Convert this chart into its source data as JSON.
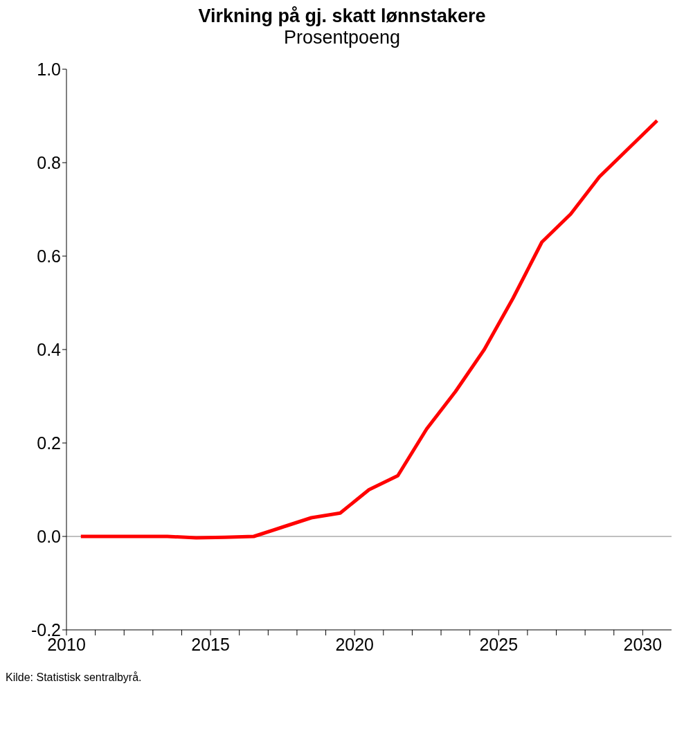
{
  "chart_data": {
    "type": "line",
    "title": "Virkning på gj. skatt lønnstakere",
    "subtitle": "Prosentpoeng",
    "annotations": [
      "Kilde: Statistisk sentralbyrå."
    ],
    "x": [
      2010.5,
      2011.5,
      2012.5,
      2013.5,
      2014.5,
      2015.5,
      2016.5,
      2017.5,
      2018.5,
      2019.5,
      2020.5,
      2021.5,
      2022.5,
      2023.5,
      2024.5,
      2025.5,
      2026.5,
      2027.5,
      2028.5,
      2029.5,
      2030.5
    ],
    "series": [
      {
        "color": "#ff0000",
        "values": [
          0,
          0,
          0,
          0,
          -0.003,
          -0.002,
          0,
          0.02,
          0.04,
          0.05,
          0.1,
          0.13,
          0.23,
          0.31,
          0.4,
          0.51,
          0.63,
          0.69,
          0.77,
          0.83,
          0.89
        ]
      }
    ],
    "xlim": [
      2010,
      2031
    ],
    "xticks": [
      2010,
      {
        "value": 2011,
        "label": null
      },
      {
        "value": 2012,
        "label": null
      },
      {
        "value": 2013,
        "label": null
      },
      {
        "value": 2014,
        "label": null
      },
      2015,
      {
        "value": 2016,
        "label": null
      },
      {
        "value": 2017,
        "label": null
      },
      {
        "value": 2018,
        "label": null
      },
      {
        "value": 2019,
        "label": null
      },
      2020,
      {
        "value": 2021,
        "label": null
      },
      {
        "value": 2022,
        "label": null
      },
      {
        "value": 2023,
        "label": null
      },
      {
        "value": 2024,
        "label": null
      },
      2025,
      {
        "value": 2026,
        "label": null
      },
      {
        "value": 2027,
        "label": null
      },
      {
        "value": 2028,
        "label": null
      },
      {
        "value": 2029,
        "label": null
      },
      2030
    ],
    "ylim": [
      -0.2,
      1.0
    ],
    "yticks": [
      {
        "value": -0.2,
        "label": "-0.2"
      },
      {
        "value": 0,
        "label": "0.0"
      },
      0.2,
      0.4,
      0.6,
      0.8,
      {
        "value": 1,
        "label": "1.0"
      }
    ],
    "ref_lines": [
      {
        "axis": "y",
        "value": 0,
        "color": "#808080"
      }
    ],
    "grid": false,
    "legend": false,
    "marker": "none",
    "line_style": "solid"
  }
}
